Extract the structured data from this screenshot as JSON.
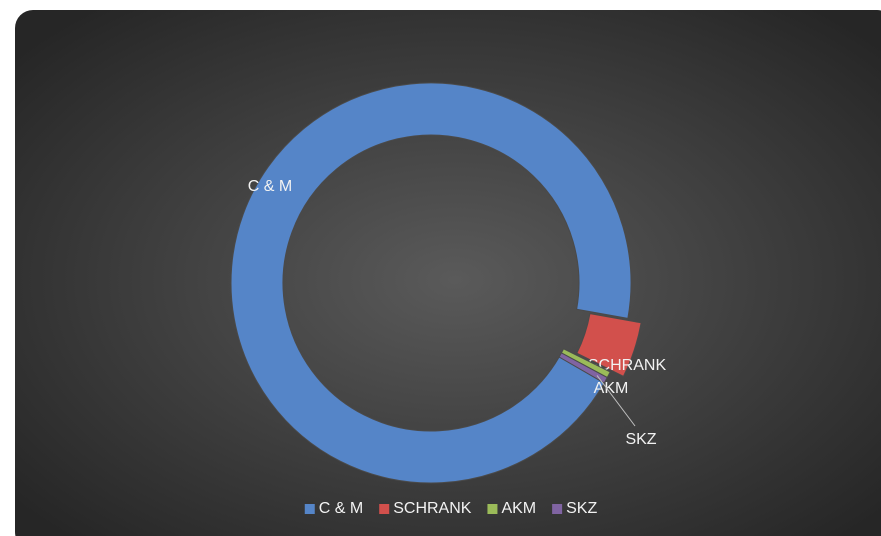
{
  "chart_data": {
    "type": "doughnut",
    "categories": [
      "C & M",
      "SCHRANK",
      "AKM",
      "SKZ"
    ],
    "values": [
      94.5,
      4.5,
      0.5,
      0.5
    ],
    "colors": [
      "#5585c8",
      "#d2504c",
      "#9bbb59",
      "#8064a2"
    ],
    "legend": "bottom"
  }
}
